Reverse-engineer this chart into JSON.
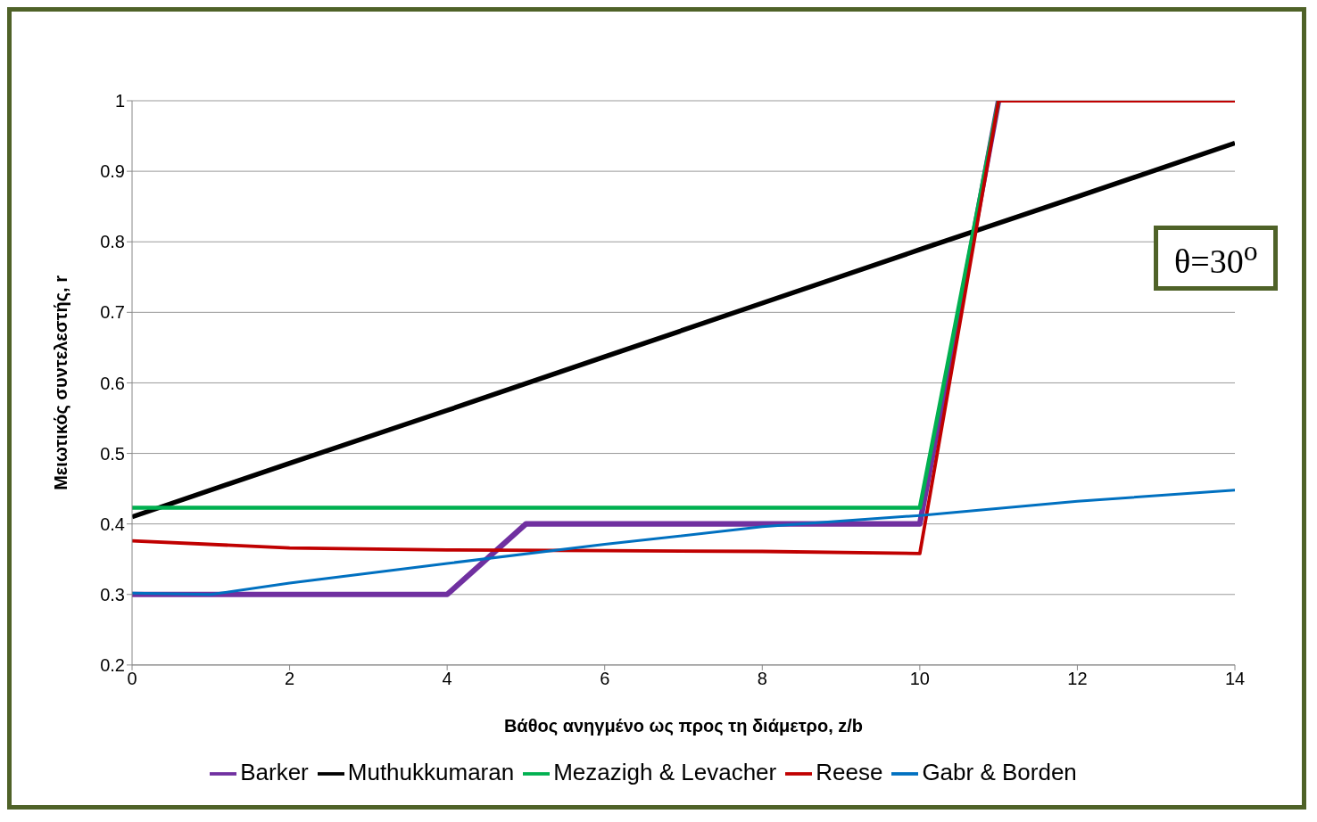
{
  "chart_data": {
    "type": "line",
    "xlabel": "Βάθος ανηγμένο ως προς τη διάμετρο, z/b",
    "ylabel": "Μειωτικός συντελεστής, r",
    "annotations": [
      "θ=30$^{o}$"
    ],
    "xlim": [
      0,
      14
    ],
    "xticks": [
      0,
      2,
      4,
      6,
      8,
      10,
      12,
      14
    ],
    "ylim": [
      0.2,
      1
    ],
    "yticks": [
      0.2,
      0.3,
      0.4,
      0.5,
      0.6,
      0.7,
      0.8,
      0.9,
      1
    ],
    "grid": "y",
    "legend": "bottom",
    "marker": "none",
    "line_style": "solid",
    "series": [
      {
        "name": "Barker",
        "color": "#7030a0",
        "x": [
          0,
          1,
          4,
          5,
          10,
          11
        ],
        "values": [
          0.3,
          0.3,
          0.3,
          0.4,
          0.4,
          1
        ]
      },
      {
        "name": "Muthukkumaran",
        "color": "#000000",
        "x": [
          0,
          2,
          4,
          6,
          8,
          10,
          12,
          14
        ],
        "values": [
          0.41,
          0.486,
          0.561,
          0.637,
          0.713,
          0.789,
          0.864,
          0.94
        ]
      },
      {
        "name": "Mezazigh & Levacher",
        "color": "#00b050",
        "x": [
          0,
          10,
          11
        ],
        "values": [
          0.423,
          0.423,
          1
        ]
      },
      {
        "name": "Reese",
        "color": "#c00000",
        "x": [
          0,
          2,
          4,
          6,
          8,
          10,
          11,
          14
        ],
        "values": [
          0.376,
          0.366,
          0.363,
          0.362,
          0.361,
          0.358,
          1,
          1
        ]
      },
      {
        "name": "Gabr & Borden",
        "color": "#0070c0",
        "x": [
          0,
          1,
          2,
          4,
          6,
          8,
          10,
          12,
          14
        ],
        "values": [
          0.302,
          0.3,
          0.316,
          0.344,
          0.371,
          0.396,
          0.412,
          0.432,
          0.448
        ]
      }
    ]
  }
}
